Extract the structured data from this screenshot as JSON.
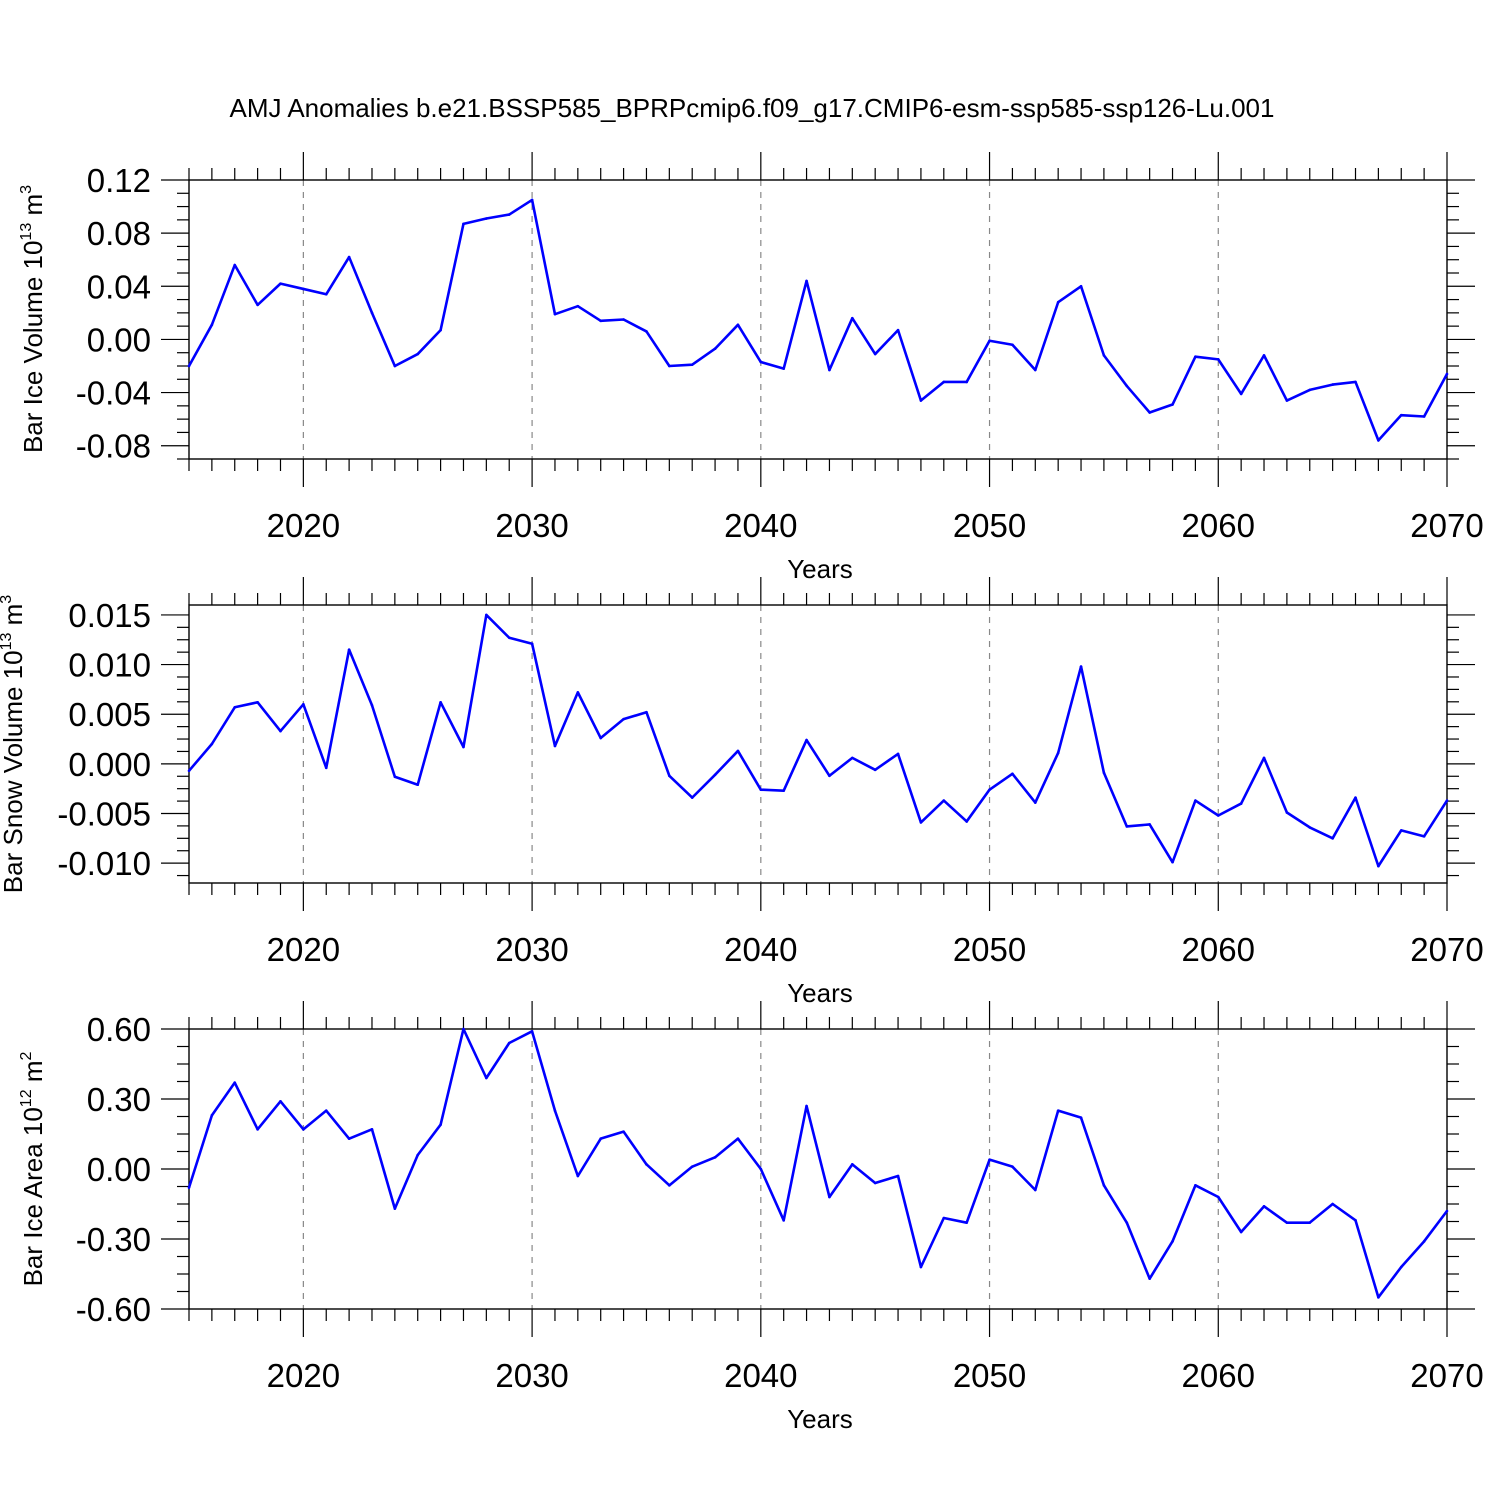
{
  "title": "AMJ Anomalies b.e21.BSSP585_BPRPcmip6.f09_g17.CMIP6-esm-ssp585-ssp126-Lu.001",
  "colors": {
    "line": "#0000ff",
    "axis": "#000000",
    "grid": "#888888"
  },
  "chart_data": [
    {
      "type": "line",
      "ylabel": "Bar Ice Volume",
      "yunit_base": "10",
      "yunit_exp": "13",
      "yunit_tail": " m",
      "yunit_tail_exp": "3",
      "xlabel": "Years",
      "xlim": [
        2015,
        2070
      ],
      "ylim": [
        -0.09,
        0.12
      ],
      "yticks": [
        -0.08,
        -0.04,
        0.0,
        0.04,
        0.08,
        0.12
      ],
      "ytick_labels": [
        "-0.08",
        "-0.04",
        "0.00",
        "0.04",
        "0.08",
        "0.12"
      ],
      "xticks": [
        2020,
        2030,
        2040,
        2050,
        2060,
        2070
      ],
      "xtick_labels": [
        "2020",
        "2030",
        "2040",
        "2050",
        "2060",
        "2070"
      ],
      "grid": "vertical-dashed",
      "x": [
        2015,
        2016,
        2017,
        2018,
        2019,
        2020,
        2021,
        2022,
        2023,
        2024,
        2025,
        2026,
        2027,
        2028,
        2029,
        2030,
        2031,
        2032,
        2033,
        2034,
        2035,
        2036,
        2037,
        2038,
        2039,
        2040,
        2041,
        2042,
        2043,
        2044,
        2045,
        2046,
        2047,
        2048,
        2049,
        2050,
        2051,
        2052,
        2053,
        2054,
        2055,
        2056,
        2057,
        2058,
        2059,
        2060,
        2061,
        2062,
        2063,
        2064,
        2065,
        2066,
        2067,
        2068,
        2069,
        2070
      ],
      "y": [
        -0.02,
        0.011,
        0.056,
        0.026,
        0.042,
        0.038,
        0.034,
        0.062,
        0.02,
        -0.02,
        -0.011,
        0.007,
        0.087,
        0.091,
        0.094,
        0.105,
        0.019,
        0.025,
        0.014,
        0.015,
        0.006,
        -0.02,
        -0.019,
        -0.007,
        0.011,
        -0.017,
        -0.022,
        0.044,
        -0.023,
        0.016,
        -0.011,
        0.007,
        -0.046,
        -0.032,
        -0.032,
        -0.001,
        -0.004,
        -0.023,
        0.028,
        0.04,
        -0.012,
        -0.035,
        -0.055,
        -0.049,
        -0.013,
        -0.015,
        -0.041,
        -0.012,
        -0.046,
        -0.038,
        -0.034,
        -0.032,
        -0.076,
        -0.057,
        -0.058,
        -0.026
      ]
    },
    {
      "type": "line",
      "ylabel": "Bar Snow Volume",
      "yunit_base": "10",
      "yunit_exp": "13",
      "yunit_tail": " m",
      "yunit_tail_exp": "3",
      "xlabel": "Years",
      "xlim": [
        2015,
        2070
      ],
      "ylim": [
        -0.012,
        0.016
      ],
      "yticks": [
        -0.01,
        -0.005,
        0.0,
        0.005,
        0.01,
        0.015
      ],
      "ytick_labels": [
        "-0.010",
        "-0.005",
        "0.000",
        "0.005",
        "0.010",
        "0.015"
      ],
      "xticks": [
        2020,
        2030,
        2040,
        2050,
        2060,
        2070
      ],
      "xtick_labels": [
        "2020",
        "2030",
        "2040",
        "2050",
        "2060",
        "2070"
      ],
      "grid": "vertical-dashed",
      "x": [
        2015,
        2016,
        2017,
        2018,
        2019,
        2020,
        2021,
        2022,
        2023,
        2024,
        2025,
        2026,
        2027,
        2028,
        2029,
        2030,
        2031,
        2032,
        2033,
        2034,
        2035,
        2036,
        2037,
        2038,
        2039,
        2040,
        2041,
        2042,
        2043,
        2044,
        2045,
        2046,
        2047,
        2048,
        2049,
        2050,
        2051,
        2052,
        2053,
        2054,
        2055,
        2056,
        2057,
        2058,
        2059,
        2060,
        2061,
        2062,
        2063,
        2064,
        2065,
        2066,
        2067,
        2068,
        2069,
        2070
      ],
      "y": [
        -0.0007,
        0.002,
        0.0057,
        0.0062,
        0.0033,
        0.006,
        -0.0004,
        0.0115,
        0.0059,
        -0.0013,
        -0.0021,
        0.0062,
        0.0017,
        0.015,
        0.0127,
        0.0121,
        0.0018,
        0.0072,
        0.0026,
        0.0045,
        0.0052,
        -0.0012,
        -0.0034,
        -0.0011,
        0.0013,
        -0.0026,
        -0.0027,
        0.0024,
        -0.0012,
        0.0006,
        -0.0006,
        0.001,
        -0.0059,
        -0.0037,
        -0.0058,
        -0.0026,
        -0.001,
        -0.0039,
        0.0011,
        0.0098,
        -0.0009,
        -0.0063,
        -0.0061,
        -0.0099,
        -0.0037,
        -0.0052,
        -0.004,
        0.0006,
        -0.0049,
        -0.0064,
        -0.0075,
        -0.0034,
        -0.0103,
        -0.0067,
        -0.0073,
        -0.0037
      ]
    },
    {
      "type": "line",
      "ylabel": "Bar Ice Area",
      "yunit_base": "10",
      "yunit_exp": "12",
      "yunit_tail": " m",
      "yunit_tail_exp": "2",
      "xlabel": "Years",
      "xlim": [
        2015,
        2070
      ],
      "ylim": [
        -0.6,
        0.6
      ],
      "yticks": [
        -0.6,
        -0.3,
        0.0,
        0.3,
        0.6
      ],
      "ytick_labels": [
        "-0.60",
        "-0.30",
        "0.00",
        "0.30",
        "0.60"
      ],
      "xticks": [
        2020,
        2030,
        2040,
        2050,
        2060,
        2070
      ],
      "xtick_labels": [
        "2020",
        "2030",
        "2040",
        "2050",
        "2060",
        "2070"
      ],
      "grid": "vertical-dashed",
      "x": [
        2015,
        2016,
        2017,
        2018,
        2019,
        2020,
        2021,
        2022,
        2023,
        2024,
        2025,
        2026,
        2027,
        2028,
        2029,
        2030,
        2031,
        2032,
        2033,
        2034,
        2035,
        2036,
        2037,
        2038,
        2039,
        2040,
        2041,
        2042,
        2043,
        2044,
        2045,
        2046,
        2047,
        2048,
        2049,
        2050,
        2051,
        2052,
        2053,
        2054,
        2055,
        2056,
        2057,
        2058,
        2059,
        2060,
        2061,
        2062,
        2063,
        2064,
        2065,
        2066,
        2067,
        2068,
        2069,
        2070
      ],
      "y": [
        -0.08,
        0.23,
        0.37,
        0.17,
        0.29,
        0.17,
        0.25,
        0.13,
        0.17,
        -0.17,
        0.06,
        0.19,
        0.6,
        0.39,
        0.54,
        0.59,
        0.25,
        -0.03,
        0.13,
        0.16,
        0.02,
        -0.07,
        0.01,
        0.05,
        0.13,
        0.0,
        -0.22,
        0.27,
        -0.12,
        0.02,
        -0.06,
        -0.03,
        -0.42,
        -0.21,
        -0.23,
        0.04,
        0.01,
        -0.09,
        0.25,
        0.22,
        -0.07,
        -0.23,
        -0.47,
        -0.31,
        -0.07,
        -0.12,
        -0.27,
        -0.16,
        -0.23,
        -0.23,
        -0.15,
        -0.22,
        -0.55,
        -0.42,
        -0.31,
        -0.18
      ]
    }
  ]
}
